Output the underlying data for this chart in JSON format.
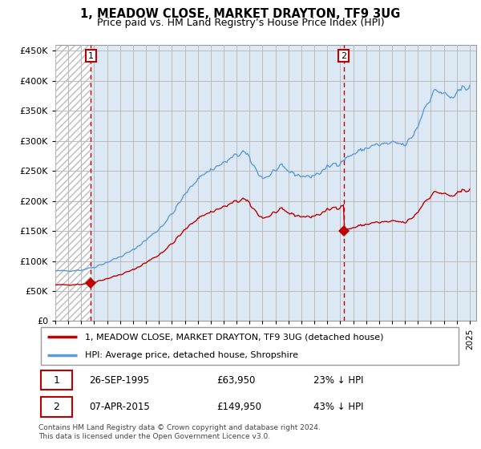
{
  "title": "1, MEADOW CLOSE, MARKET DRAYTON, TF9 3UG",
  "subtitle": "Price paid vs. HM Land Registry’s House Price Index (HPI)",
  "legend_line1": "1, MEADOW CLOSE, MARKET DRAYTON, TF9 3UG (detached house)",
  "legend_line2": "HPI: Average price, detached house, Shropshire",
  "annotation1_date": "26-SEP-1995",
  "annotation1_price": "£63,950",
  "annotation1_hpi": "23% ↓ HPI",
  "annotation2_date": "07-APR-2015",
  "annotation2_price": "£149,950",
  "annotation2_hpi": "43% ↓ HPI",
  "footer": "Contains HM Land Registry data © Crown copyright and database right 2024.\nThis data is licensed under the Open Government Licence v3.0.",
  "hpi_color": "#5b9bd5",
  "price_color": "#c00000",
  "annotation_color": "#c00000",
  "hatch_color": "#d8d8d8",
  "bg_blue": "#dce9f5",
  "ylim": [
    0,
    460000
  ],
  "yticks": [
    0,
    50000,
    100000,
    150000,
    200000,
    250000,
    300000,
    350000,
    400000,
    450000
  ],
  "xmin": 1993.0,
  "xmax": 2025.5,
  "sale1_year": 1995.75,
  "sale1_value": 63950,
  "sale2_year": 2015.27,
  "sale2_value": 149950
}
